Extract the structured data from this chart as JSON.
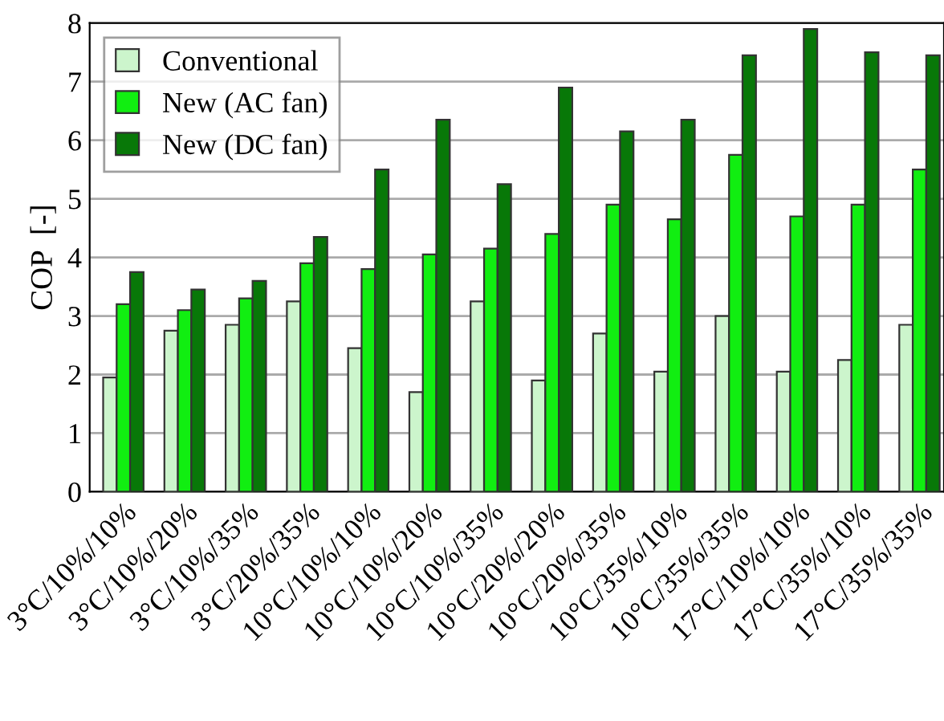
{
  "chart_data": {
    "type": "bar",
    "ylabel": "COP  [-]",
    "categories": [
      "3°C/10%/10%",
      "3°C/10%/20%",
      "3°C/10%/35%",
      "3°C/20%/35%",
      "10°C/10%/10%",
      "10°C/10%/20%",
      "10°C/10%/35%",
      "10°C/20%/20%",
      "10°C/20%/35%",
      "10°C/35%/10%",
      "10°C/35%/35%",
      "17°C/10%/10%",
      "17°C/35%/10%",
      "17°C/35%/35%"
    ],
    "series": [
      {
        "name": "Conventional",
        "color": "#ccf5cc",
        "values": [
          1.95,
          2.75,
          2.85,
          3.25,
          2.45,
          1.7,
          3.25,
          1.9,
          2.7,
          2.05,
          3.0,
          2.05,
          2.25,
          2.85
        ]
      },
      {
        "name": "New (AC fan)",
        "color": "#11ee11",
        "values": [
          3.2,
          3.1,
          3.3,
          3.9,
          3.8,
          4.05,
          4.15,
          4.4,
          4.9,
          4.65,
          5.75,
          4.7,
          4.9,
          5.5
        ]
      },
      {
        "name": "New (DC fan)",
        "color": "#087808",
        "values": [
          3.75,
          3.45,
          3.6,
          4.35,
          5.5,
          6.35,
          5.25,
          6.9,
          6.15,
          6.35,
          7.45,
          7.9,
          7.5,
          7.45
        ]
      }
    ],
    "ylim": [
      0,
      8
    ],
    "yticks": [
      0,
      1,
      2,
      3,
      4,
      5,
      6,
      7,
      8
    ],
    "grid": "y",
    "legend": "top left"
  }
}
